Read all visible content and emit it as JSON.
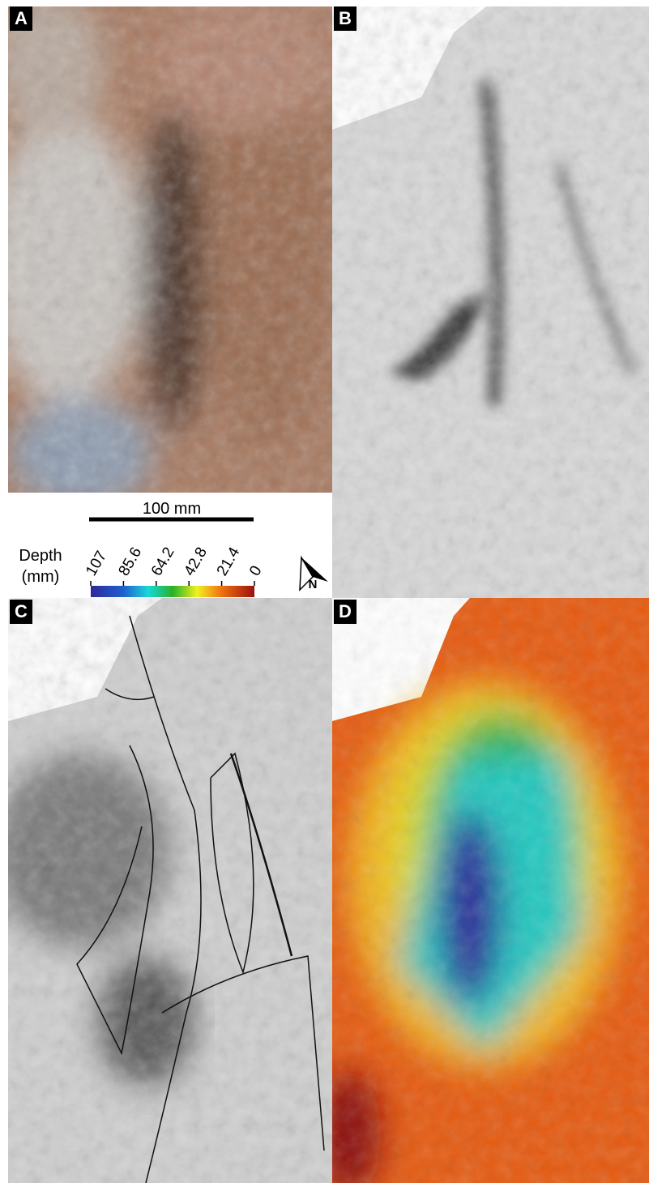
{
  "panels": {
    "labels": [
      "A",
      "B",
      "C",
      "D"
    ]
  },
  "scale_bar": {
    "label": "100 mm"
  },
  "colorbar": {
    "title": "Depth",
    "unit": "(mm)",
    "lim": [
      107,
      0
    ],
    "ticks": [
      107,
      85.6,
      64.2,
      42.8,
      21.4,
      0
    ]
  },
  "north_arrow": {
    "label": "N"
  }
}
